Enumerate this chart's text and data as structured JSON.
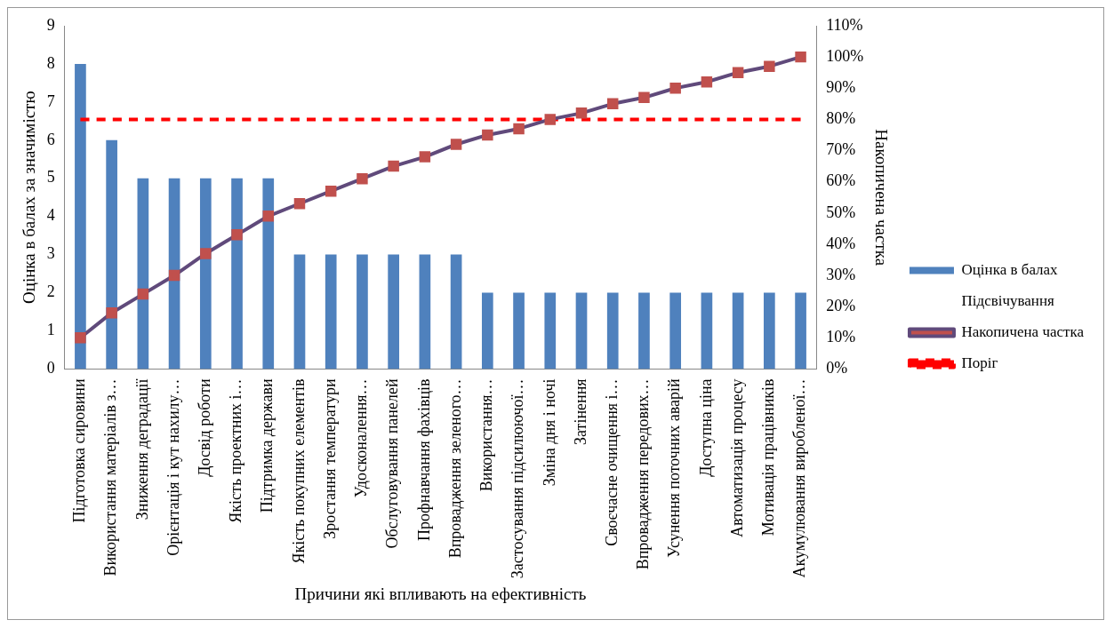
{
  "chart_data": {
    "type": "bar",
    "xlabel": "Причини які впливають на ефективність",
    "ylabel": "Оцінка в балах за значимістю",
    "y2label": "Накопичена частка",
    "categories": [
      "Підготовка сировини",
      "Використання матеріалів з…",
      "Зниження деградації",
      "Орієнтація і кут нахилу…",
      "Досвід роботи",
      "Якість проектних і…",
      "Підтримка держави",
      "Якість покупних елементів",
      "Зростання температури",
      "Удосконалення…",
      "Обслуговування панелей",
      "Профнавчання фахівців",
      "Впровадження зеленого…",
      "Використання…",
      "Застосування підсилюючої…",
      "Зміна дня і ночі",
      "Затінення",
      "Своєчасне очищення і…",
      "Впровадження передових…",
      "Усунення поточних аварій",
      "Доступна ціна",
      "Автоматизація процесу",
      "Мотивація працівників",
      "Акумулювання виробленої…"
    ],
    "series": [
      {
        "name": "Оцінка в балах",
        "color": "#4f81bd",
        "values": [
          8,
          6,
          5,
          5,
          5,
          5,
          5,
          3,
          3,
          3,
          3,
          3,
          3,
          2,
          2,
          2,
          2,
          2,
          2,
          2,
          2,
          2,
          2,
          2
        ]
      },
      {
        "name": "Підсвічування",
        "type": "line",
        "values": [
          null,
          null,
          null,
          null,
          null,
          null,
          null,
          null,
          null,
          null,
          null,
          null,
          null,
          null,
          null,
          null,
          null,
          null,
          null,
          null,
          null,
          null,
          null,
          null
        ]
      },
      {
        "name": "Накопичена частка",
        "type": "line",
        "axis": "y2",
        "color": "#604a7b",
        "marker": "square",
        "values": [
          10,
          18,
          24,
          30,
          37,
          43,
          49,
          53,
          57,
          61,
          65,
          68,
          72,
          75,
          77,
          80,
          82,
          85,
          87,
          90,
          92,
          95,
          97,
          100
        ]
      },
      {
        "name": "Поріг",
        "type": "line",
        "axis": "y2",
        "color": "#ff0000",
        "marker": "none",
        "line_style": "dashed",
        "values": [
          80,
          80,
          80,
          80,
          80,
          80,
          80,
          80,
          80,
          80,
          80,
          80,
          80,
          80,
          80,
          80,
          80,
          80,
          80,
          80,
          80,
          80,
          80,
          80
        ]
      }
    ],
    "ylim": [
      0,
      9
    ],
    "yticks": [
      0,
      1,
      2,
      3,
      4,
      5,
      6,
      7,
      8,
      9
    ],
    "y2lim": [
      0,
      110
    ],
    "y2ticks": [
      {
        "value": 0,
        "label": "0%"
      },
      {
        "value": 10,
        "label": "10%"
      },
      {
        "value": 20,
        "label": "20%"
      },
      {
        "value": 30,
        "label": "30%"
      },
      {
        "value": 40,
        "label": "40%"
      },
      {
        "value": 50,
        "label": "50%"
      },
      {
        "value": 60,
        "label": "60%"
      },
      {
        "value": 70,
        "label": "70%"
      },
      {
        "value": 80,
        "label": "80%"
      },
      {
        "value": 90,
        "label": "90%"
      },
      {
        "value": 100,
        "label": "100%"
      },
      {
        "value": 110,
        "label": "110%"
      }
    ],
    "grid": false,
    "legend": "right"
  }
}
